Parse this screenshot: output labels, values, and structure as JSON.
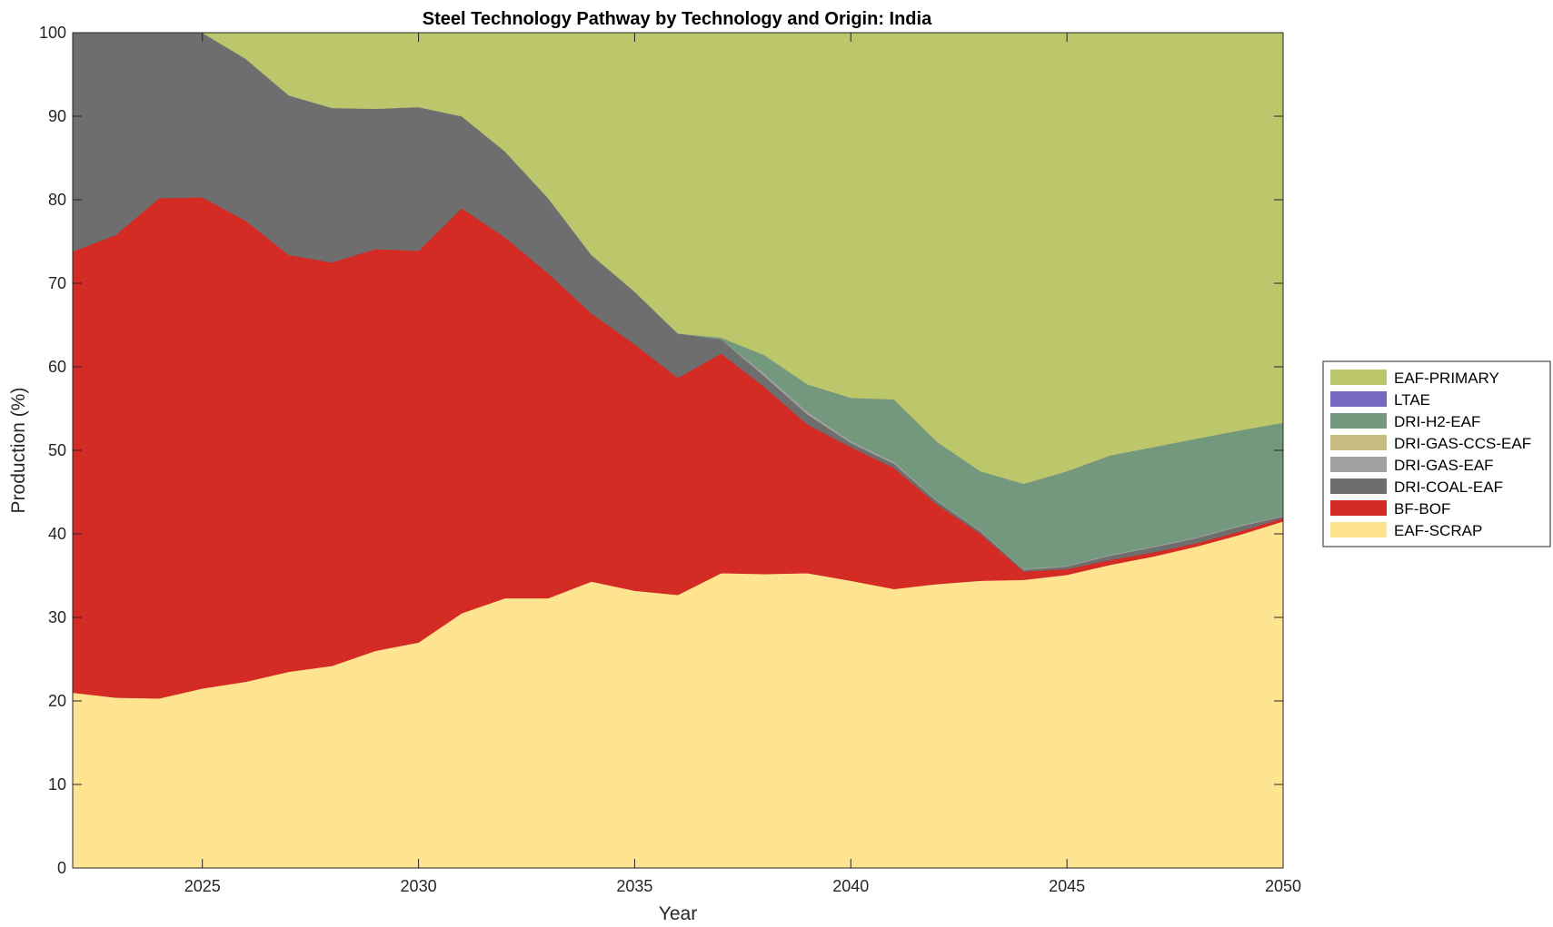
{
  "chart_data": {
    "type": "area",
    "stacked": true,
    "title": "Steel Technology Pathway by Technology and Origin: India",
    "xlabel": "Year",
    "ylabel": "Production (%)",
    "xlim": [
      2022,
      2050
    ],
    "ylim": [
      0,
      100
    ],
    "x_ticks": [
      2025,
      2030,
      2035,
      2040,
      2045,
      2050
    ],
    "y_ticks": [
      0,
      10,
      20,
      30,
      40,
      50,
      60,
      70,
      80,
      90,
      100
    ],
    "legend_position": "right",
    "x": [
      2022,
      2023,
      2024,
      2025,
      2026,
      2027,
      2028,
      2029,
      2030,
      2031,
      2032,
      2033,
      2034,
      2035,
      2036,
      2037,
      2038,
      2039,
      2040,
      2041,
      2042,
      2043,
      2044,
      2045,
      2046,
      2047,
      2048,
      2049,
      2050
    ],
    "series": [
      {
        "name": "EAF-SCRAP",
        "color": "#FEE391",
        "values": [
          21.0,
          20.4,
          20.3,
          21.5,
          22.3,
          23.5,
          24.2,
          26.0,
          27.0,
          30.5,
          32.3,
          32.3,
          34.3,
          33.2,
          32.7,
          35.3,
          35.2,
          35.3,
          34.4,
          33.4,
          34.0,
          34.4,
          34.5,
          35.1,
          36.3,
          37.3,
          38.5,
          39.9,
          41.5
        ]
      },
      {
        "name": "BF-BOF",
        "color": "#D42B25",
        "values": [
          52.8,
          55.4,
          59.9,
          58.8,
          55.2,
          49.9,
          48.3,
          48.1,
          46.9,
          48.5,
          43.2,
          38.9,
          32.1,
          29.5,
          26.0,
          26.3,
          22.4,
          17.8,
          16.0,
          14.5,
          9.5,
          5.6,
          1.0,
          0.7,
          0.6,
          0.5,
          0.4,
          0.4,
          0.4
        ]
      },
      {
        "name": "DRI-COAL-EAF",
        "color": "#6E6E6E",
        "values": [
          26.2,
          24.2,
          19.8,
          19.7,
          19.4,
          19.1,
          18.5,
          16.8,
          17.2,
          11.0,
          10.3,
          9.0,
          7.0,
          6.3,
          5.3,
          1.7,
          1.3,
          1.2,
          0.5,
          0.5,
          0.4,
          0.3,
          0.2,
          0.3,
          0.5,
          0.6,
          0.6,
          0.6,
          0.2
        ]
      },
      {
        "name": "DRI-GAS-EAF",
        "color": "#A0A0A0",
        "values": [
          0,
          0,
          0,
          0,
          0,
          0,
          0,
          0,
          0,
          0,
          0,
          0,
          0,
          0,
          0,
          0,
          0.3,
          0.3,
          0.2,
          0.2,
          0.1,
          0.1,
          0.1,
          0.1,
          0.1,
          0.1,
          0.1,
          0.1,
          0.1
        ]
      },
      {
        "name": "DRI-GAS-CCS-EAF",
        "color": "#C6BC80",
        "values": [
          0,
          0,
          0,
          0,
          0,
          0,
          0,
          0,
          0,
          0,
          0,
          0,
          0,
          0,
          0,
          0,
          0,
          0,
          0,
          0,
          0,
          0,
          0,
          0,
          0,
          0,
          0,
          0,
          0
        ]
      },
      {
        "name": "DRI-H2-EAF",
        "color": "#74987E",
        "values": [
          0,
          0,
          0,
          0,
          0,
          0,
          0,
          0,
          0,
          0,
          0,
          0,
          0,
          0,
          0,
          0.2,
          2.2,
          3.3,
          5.2,
          7.5,
          7.0,
          7.1,
          10.2,
          11.3,
          11.9,
          11.9,
          11.8,
          11.4,
          11.1
        ]
      },
      {
        "name": "LTAE",
        "color": "#7469BE",
        "values": [
          0,
          0,
          0,
          0,
          0,
          0,
          0,
          0,
          0,
          0,
          0,
          0,
          0,
          0,
          0,
          0,
          0,
          0,
          0,
          0,
          0,
          0,
          0,
          0,
          0,
          0,
          0,
          0,
          0
        ]
      },
      {
        "name": "EAF-PRIMARY",
        "color": "#BCC66A",
        "values": [
          0,
          0,
          0,
          0,
          3.1,
          7.5,
          9.0,
          9.1,
          8.9,
          10.0,
          14.2,
          19.8,
          26.6,
          31.0,
          36.0,
          36.5,
          38.6,
          42.1,
          43.7,
          43.9,
          49.0,
          52.5,
          54.0,
          52.5,
          50.6,
          49.6,
          48.6,
          47.6,
          46.7
        ]
      }
    ],
    "legend_order": [
      "EAF-PRIMARY",
      "LTAE",
      "DRI-H2-EAF",
      "DRI-GAS-CCS-EAF",
      "DRI-GAS-EAF",
      "DRI-COAL-EAF",
      "BF-BOF",
      "EAF-SCRAP"
    ]
  }
}
